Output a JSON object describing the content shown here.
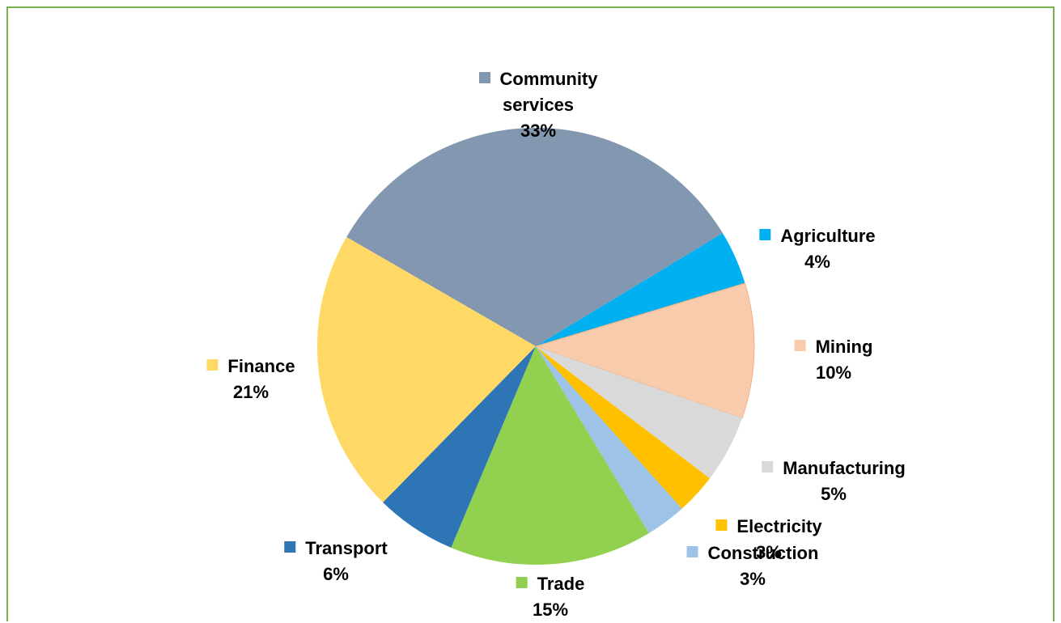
{
  "chart_data": {
    "type": "pie",
    "categories": [
      "Community services",
      "Agriculture",
      "Mining",
      "Manufacturing",
      "Electricity",
      "Construction",
      "Trade",
      "Transport",
      "Finance"
    ],
    "values": [
      33,
      4,
      10,
      5,
      3,
      3,
      15,
      6,
      21
    ],
    "value_labels": [
      "33%",
      "4%",
      "10%",
      "5%",
      "3%",
      "3%",
      "15%",
      "6%",
      "21%"
    ],
    "colors": [
      "#8497b0",
      "#00b0f0",
      "#f8cbad",
      "#d9d9d9",
      "#ffc000",
      "#9dc3e6",
      "#92d050",
      "#2e75b6",
      "#ffd966"
    ]
  }
}
